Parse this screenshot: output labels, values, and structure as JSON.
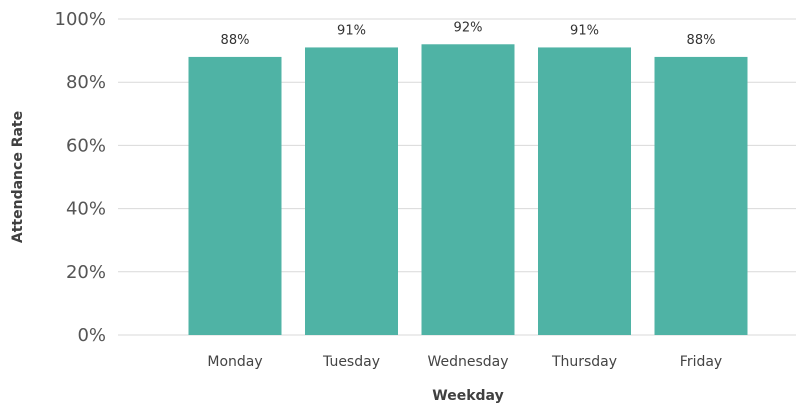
{
  "chart_data": {
    "type": "bar",
    "title": "",
    "xlabel": "Weekday",
    "ylabel": "Attendance Rate",
    "categories": [
      "Monday",
      "Tuesday",
      "Wednesday",
      "Thursday",
      "Friday"
    ],
    "values": [
      88,
      91,
      92,
      91,
      88
    ],
    "data_labels": [
      "88%",
      "91%",
      "92%",
      "91%",
      "88%"
    ],
    "ylim": [
      0,
      100
    ],
    "yticks": [
      0,
      20,
      40,
      60,
      80,
      100
    ],
    "ytick_labels": [
      "0%",
      "20%",
      "40%",
      "60%",
      "80%",
      "100%"
    ],
    "grid": true,
    "legend": "none",
    "bar_color": "#4fb3a5"
  }
}
